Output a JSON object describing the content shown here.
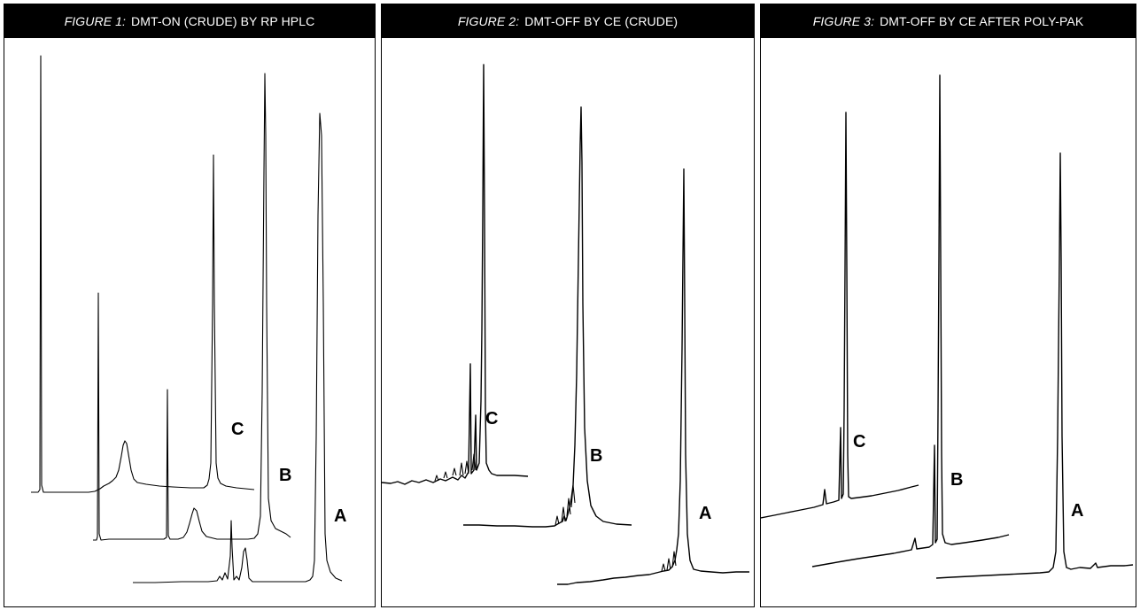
{
  "panels": [
    {
      "prefix": "FIGURE 1:",
      "title": "DMT-ON (CRUDE) BY RP HPLC"
    },
    {
      "prefix": "FIGURE 2:",
      "title": "DMT-OFF BY CE (CRUDE)"
    },
    {
      "prefix": "FIGURE 3:",
      "title": "DMT-OFF BY CE AFTER POLY-PAK"
    }
  ],
  "chart_data": [
    {
      "type": "line",
      "title": "FIGURE 1: DMT-ON (CRUDE) BY RP HPLC",
      "series": [
        {
          "name": "A"
        },
        {
          "name": "B"
        },
        {
          "name": "C"
        }
      ]
    },
    {
      "type": "line",
      "title": "FIGURE 2: DMT-OFF BY CE (CRUDE)",
      "series": [
        {
          "name": "A"
        },
        {
          "name": "B"
        },
        {
          "name": "C"
        }
      ]
    },
    {
      "type": "line",
      "title": "FIGURE 3: DMT-OFF BY CE AFTER POLY-PAK",
      "series": [
        {
          "name": "A"
        },
        {
          "name": "B"
        },
        {
          "name": "C"
        }
      ]
    }
  ]
}
